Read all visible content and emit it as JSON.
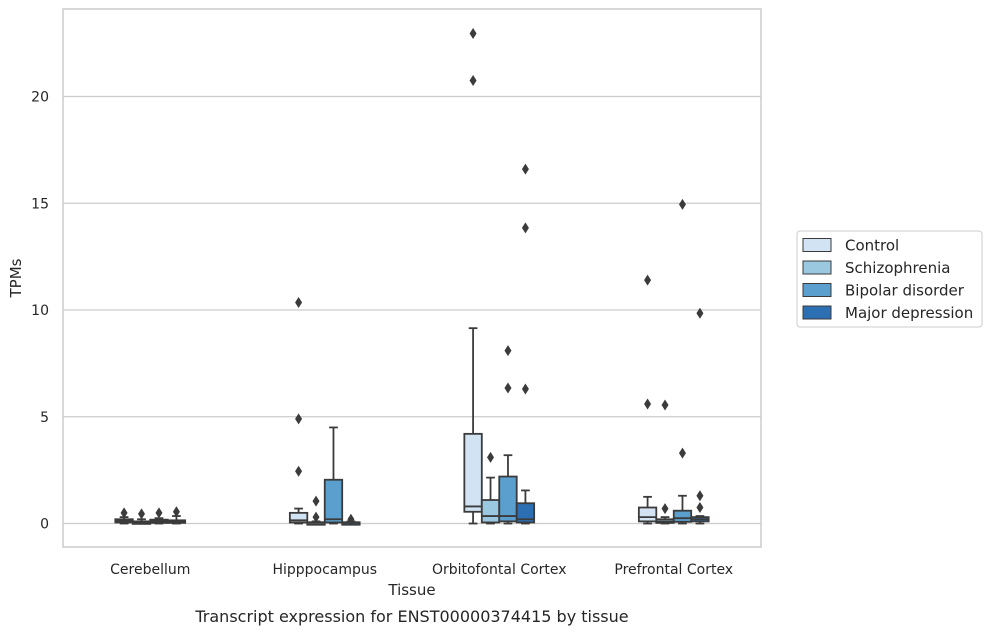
{
  "chart_data": {
    "type": "box",
    "xlabel": "Tissue",
    "ylabel": "TPMs",
    "caption": "Transcript expression for ENST00000374415 by tissue",
    "ylim": [
      -1.1,
      24.1
    ],
    "yticks": [
      0,
      5,
      10,
      15,
      20
    ],
    "categories": [
      "Cerebellum",
      "Hipppocampus",
      "Orbitofontal Cortex",
      "Prefrontal Cortex"
    ],
    "grid": "horizontal",
    "legend_position": "right",
    "series": [
      {
        "name": "Control",
        "color": "#d2e3f3",
        "boxes": [
          {
            "q1": 0.05,
            "median": 0.12,
            "q3": 0.2,
            "whisker_low": 0.0,
            "whisker_high": 0.3,
            "outliers": [
              0.5
            ]
          },
          {
            "q1": 0.05,
            "median": 0.15,
            "q3": 0.5,
            "whisker_low": 0.0,
            "whisker_high": 0.7,
            "outliers": [
              2.45,
              4.9,
              10.35
            ]
          },
          {
            "q1": 0.55,
            "median": 0.8,
            "q3": 4.2,
            "whisker_low": 0.0,
            "whisker_high": 9.15,
            "outliers": [
              20.75,
              22.95
            ]
          },
          {
            "q1": 0.1,
            "median": 0.3,
            "q3": 0.75,
            "whisker_low": 0.0,
            "whisker_high": 1.25,
            "outliers": [
              5.6,
              11.4
            ]
          }
        ]
      },
      {
        "name": "Schizophrenia",
        "color": "#9ac8e0",
        "boxes": [
          {
            "q1": 0.02,
            "median": 0.06,
            "q3": 0.1,
            "whisker_low": 0.0,
            "whisker_high": 0.2,
            "outliers": [
              0.45
            ]
          },
          {
            "q1": 0.01,
            "median": 0.03,
            "q3": 0.06,
            "whisker_low": 0.0,
            "whisker_high": 0.1,
            "outliers": [
              0.3,
              1.05
            ]
          },
          {
            "q1": 0.05,
            "median": 0.35,
            "q3": 1.1,
            "whisker_low": 0.0,
            "whisker_high": 2.15,
            "outliers": [
              3.1
            ]
          },
          {
            "q1": 0.03,
            "median": 0.1,
            "q3": 0.2,
            "whisker_low": 0.0,
            "whisker_high": 0.3,
            "outliers": [
              0.7,
              5.55
            ]
          }
        ]
      },
      {
        "name": "Bipolar disorder",
        "color": "#5a9fcd",
        "boxes": [
          {
            "q1": 0.03,
            "median": 0.1,
            "q3": 0.18,
            "whisker_low": 0.0,
            "whisker_high": 0.25,
            "outliers": [
              0.5
            ]
          },
          {
            "q1": 0.05,
            "median": 0.2,
            "q3": 2.05,
            "whisker_low": 0.0,
            "whisker_high": 4.5,
            "outliers": []
          },
          {
            "q1": 0.1,
            "median": 0.35,
            "q3": 2.2,
            "whisker_low": 0.0,
            "whisker_high": 3.2,
            "outliers": [
              6.35,
              8.1
            ]
          },
          {
            "q1": 0.08,
            "median": 0.25,
            "q3": 0.6,
            "whisker_low": 0.0,
            "whisker_high": 1.3,
            "outliers": [
              3.3,
              14.95
            ]
          }
        ]
      },
      {
        "name": "Major depression",
        "color": "#2c6fb3",
        "boxes": [
          {
            "q1": 0.03,
            "median": 0.08,
            "q3": 0.15,
            "whisker_low": 0.0,
            "whisker_high": 0.35,
            "outliers": [
              0.55
            ]
          },
          {
            "q1": 0.01,
            "median": 0.03,
            "q3": 0.06,
            "whisker_low": 0.0,
            "whisker_high": 0.1,
            "outliers": [
              0.2
            ]
          },
          {
            "q1": 0.05,
            "median": 0.2,
            "q3": 0.95,
            "whisker_low": 0.0,
            "whisker_high": 1.55,
            "outliers": [
              6.3,
              13.85,
              16.6
            ]
          },
          {
            "q1": 0.1,
            "median": 0.2,
            "q3": 0.3,
            "whisker_low": 0.0,
            "whisker_high": 0.35,
            "outliers": [
              0.75,
              1.3,
              9.85
            ]
          }
        ]
      }
    ]
  }
}
